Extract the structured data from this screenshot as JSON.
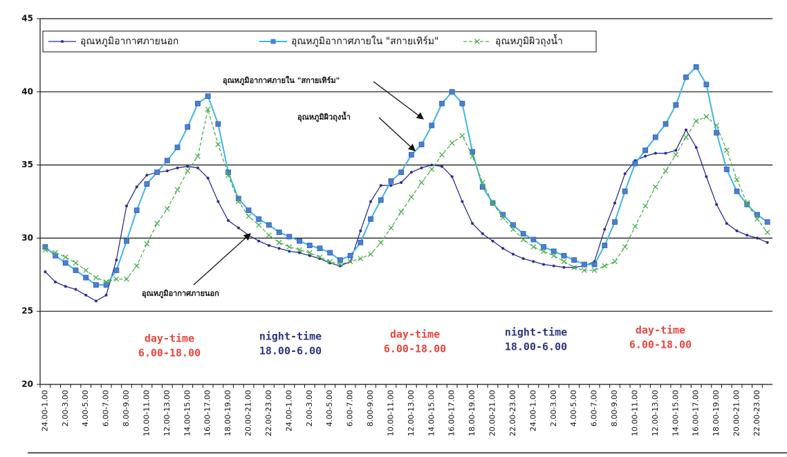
{
  "chart_data": {
    "type": "line",
    "categories": [
      "24.00-1.00",
      null,
      "2.00-3.00",
      null,
      "4.00-5.00",
      null,
      "6.00-7.00",
      null,
      "8.00-9.00",
      null,
      "10.00-11.00",
      null,
      "12.00-13.00",
      null,
      "14.00-15.00",
      null,
      "16.00-17.00",
      null,
      "18.00-19.00",
      null,
      "20.00-21.00",
      null,
      "22.00-23.00",
      null,
      "24.00-1.00",
      null,
      "2.00-3.00",
      null,
      "4.00-5.00",
      null,
      "6.00-7.00",
      null,
      "8.00-9.00",
      null,
      "10.00-11.00",
      null,
      "12.00-13.00",
      null,
      "14.00-15.00",
      null,
      "16.00-17.00",
      null,
      "18.00-19.00",
      null,
      "20.00-21.00",
      null,
      "22.00-23.00",
      null,
      "24.00-1.00",
      null,
      "2.00-3.00",
      null,
      "4.00-5.00",
      null,
      "6.00-7.00",
      null,
      "8.00-9.00",
      null,
      "10.00-11.00",
      null,
      "12.00-13.00",
      null,
      "14.00-15.00",
      null,
      "16.00-17.00",
      null,
      "18.00-19.00",
      null,
      "20.00-21.00",
      null,
      "22.00-23.00",
      null
    ],
    "series": [
      {
        "name": "อุณหภูมิอากาศภายนอก",
        "color": "#2b2f8f",
        "marker": "circle",
        "line_style": "solid",
        "values": [
          27.7,
          27.0,
          26.7,
          26.5,
          26.1,
          25.7,
          26.1,
          28.5,
          32.2,
          33.5,
          34.3,
          34.5,
          34.6,
          34.8,
          34.9,
          34.8,
          34.1,
          32.5,
          31.2,
          30.7,
          30.2,
          29.8,
          29.5,
          29.3,
          29.1,
          29.0,
          28.8,
          28.6,
          28.3,
          28.1,
          28.4,
          30.5,
          32.5,
          33.6,
          33.6,
          33.8,
          34.5,
          34.8,
          35.0,
          34.9,
          34.2,
          32.5,
          31.0,
          30.3,
          29.8,
          29.3,
          28.9,
          28.6,
          28.4,
          28.2,
          28.1,
          28.0,
          28.0,
          28.1,
          28.4,
          30.6,
          32.4,
          34.4,
          35.3,
          35.6,
          35.8,
          35.8,
          36.0,
          37.4,
          36.2,
          34.2,
          32.3,
          31.0,
          30.5,
          30.2,
          30.0,
          29.7
        ]
      },
      {
        "name": "อุณหภูมิอากาศภายใน \"สกายเทิร์ม\"",
        "color": "#3fb4e6",
        "marker": "square",
        "line_style": "solid",
        "values": [
          29.4,
          28.8,
          28.3,
          27.8,
          27.3,
          26.8,
          26.8,
          27.8,
          29.8,
          31.9,
          33.7,
          34.5,
          35.3,
          36.2,
          37.6,
          39.2,
          39.7,
          37.8,
          34.5,
          32.7,
          31.9,
          31.3,
          30.9,
          30.4,
          30.1,
          29.8,
          29.5,
          29.3,
          29.0,
          28.5,
          28.8,
          29.7,
          31.3,
          32.6,
          33.9,
          34.5,
          35.7,
          36.4,
          37.7,
          39.2,
          40.0,
          39.2,
          35.9,
          33.5,
          32.4,
          31.6,
          30.9,
          30.3,
          29.9,
          29.4,
          29.1,
          28.8,
          28.5,
          28.2,
          28.2,
          29.5,
          31.1,
          33.2,
          35.1,
          36.0,
          36.9,
          37.8,
          39.1,
          41.0,
          41.7,
          40.5,
          37.2,
          34.7,
          33.2,
          32.3,
          31.6,
          31.1
        ]
      },
      {
        "name": "อุณหภูมิผิวถุงน้ำ",
        "color": "#4caf50",
        "marker": "x",
        "line_style": "dashed",
        "values": [
          29.2,
          29.0,
          28.7,
          28.3,
          27.8,
          27.3,
          27.0,
          27.2,
          27.2,
          28.1,
          29.6,
          31.0,
          32.0,
          33.3,
          34.6,
          35.6,
          38.8,
          36.4,
          34.3,
          32.5,
          31.5,
          30.9,
          30.2,
          29.7,
          29.4,
          29.2,
          29.0,
          28.7,
          28.4,
          28.2,
          28.4,
          28.6,
          28.9,
          29.7,
          30.7,
          31.8,
          32.8,
          33.8,
          34.7,
          35.7,
          36.5,
          37.0,
          35.6,
          33.8,
          32.4,
          31.4,
          30.6,
          29.9,
          29.4,
          29.1,
          28.8,
          28.4,
          28.0,
          27.8,
          27.8,
          28.1,
          28.4,
          29.4,
          30.8,
          32.2,
          33.5,
          34.6,
          35.7,
          36.9,
          38.0,
          38.3,
          37.7,
          36.0,
          34.0,
          32.4,
          31.3,
          30.4
        ]
      }
    ],
    "ylim": [
      20,
      45
    ],
    "yticks": [
      20,
      25,
      30,
      35,
      40,
      45
    ],
    "grid": true,
    "legend": "top-left",
    "annotations": [
      "อุณหภูมิอากาศภายใน \"สกายเทิร์ม\"",
      "อุณหภูมิผิวถุงน้ำ",
      "อุณหภูมิอากาศภายนอก"
    ],
    "period_labels": [
      {
        "name": "day-time",
        "hours": "6.00-18.00",
        "color": "#e8453c"
      },
      {
        "name": "night-time",
        "hours": "18.00-6.00",
        "color": "#2e3580"
      },
      {
        "name": "day-time",
        "hours": "6.00-18.00",
        "color": "#e8453c"
      },
      {
        "name": "night-time",
        "hours": "18.00-6.00",
        "color": "#2e3580"
      },
      {
        "name": "day-time",
        "hours": "6.00-18.00",
        "color": "#e8453c"
      }
    ]
  }
}
